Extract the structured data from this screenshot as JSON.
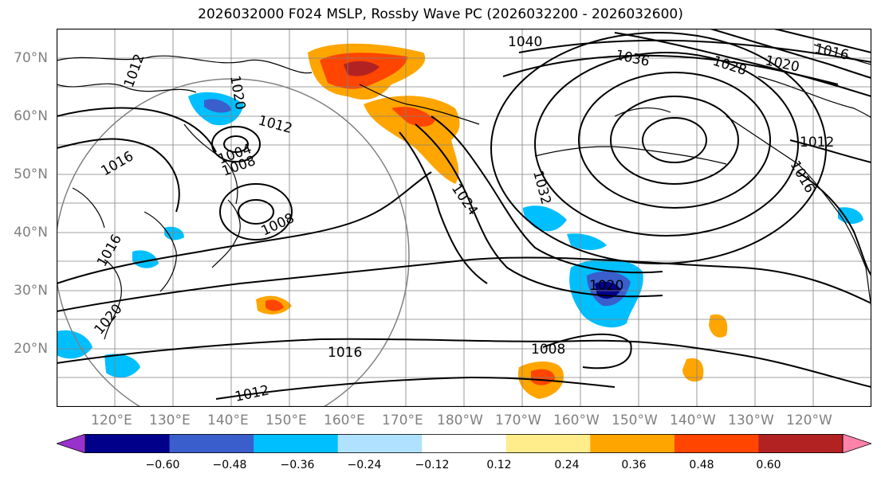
{
  "title": "2026032000 F024 MSLP, Rossby Wave PC (2026032200 - 2026032600)",
  "map": {
    "projection": "equirectangular",
    "lon_range": [
      110,
      250
    ],
    "lat_range": [
      10,
      75
    ],
    "lon_labels": [
      "120°E",
      "130°E",
      "140°E",
      "150°E",
      "160°E",
      "170°E",
      "180°W",
      "170°W",
      "160°W",
      "150°W",
      "140°W",
      "130°W",
      "120°W"
    ],
    "lat_labels": [
      "20°N",
      "30°N",
      "40°N",
      "50°N",
      "60°N",
      "70°N"
    ],
    "contour_labels": [
      "1040",
      "1036",
      "1028",
      "1020",
      "1016",
      "1012",
      "1016",
      "1024",
      "1032",
      "1012",
      "1020",
      "1004",
      "1008",
      "1008",
      "1020",
      "1008",
      "1016",
      "1012",
      "1020",
      "1012",
      "1016",
      "1016"
    ],
    "label_color": "#808080"
  },
  "colorbar": {
    "ticks": [
      "−0.60",
      "−0.48",
      "−0.36",
      "−0.24",
      "−0.12",
      "0.12",
      "0.24",
      "0.36",
      "0.48",
      "0.60"
    ],
    "colors": [
      "#9932cc",
      "#00008b",
      "#3a5fcd",
      "#00bfff",
      "#b0e2ff",
      "#ffffff",
      "#ffec8b",
      "#ffa500",
      "#ff4500",
      "#b22222",
      "#ff82ab"
    ]
  }
}
